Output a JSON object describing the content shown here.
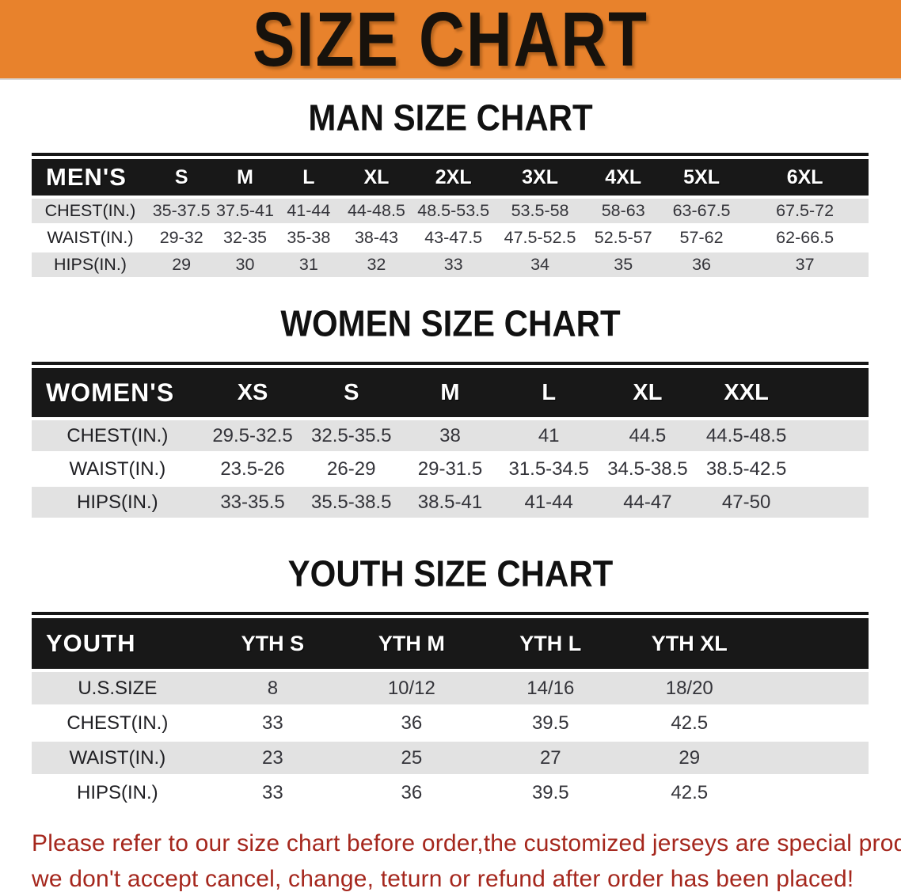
{
  "banner": {
    "title": "SIZE CHART",
    "bg_color": "#e8822c"
  },
  "sections": [
    {
      "heading": "MAN SIZE CHART",
      "table": {
        "label": "MEN'S",
        "columns": [
          "S",
          "M",
          "L",
          "XL",
          "2XL",
          "3XL",
          "4XL",
          "5XL",
          "6XL"
        ],
        "rows": [
          {
            "label": "CHEST(IN.)",
            "values": [
              "35-37.5",
              "37.5-41",
              "41-44",
              "44-48.5",
              "48.5-53.5",
              "53.5-58",
              "58-63",
              "63-67.5",
              "67.5-72"
            ]
          },
          {
            "label": "WAIST(IN.)",
            "values": [
              "29-32",
              "32-35",
              "35-38",
              "38-43",
              "43-47.5",
              "47.5-52.5",
              "52.5-57",
              "57-62",
              "62-66.5"
            ]
          },
          {
            "label": "HIPS(IN.)",
            "values": [
              "29",
              "30",
              "31",
              "32",
              "33",
              "34",
              "35",
              "36",
              "37"
            ]
          }
        ]
      }
    },
    {
      "heading": "WOMEN SIZE CHART",
      "table": {
        "label": "WOMEN'S",
        "columns": [
          "XS",
          "S",
          "M",
          "L",
          "XL",
          "XXL"
        ],
        "rows": [
          {
            "label": "CHEST(IN.)",
            "values": [
              "29.5-32.5",
              "32.5-35.5",
              "38",
              "41",
              "44.5",
              "44.5-48.5"
            ]
          },
          {
            "label": "WAIST(IN.)",
            "values": [
              "23.5-26",
              "26-29",
              "29-31.5",
              "31.5-34.5",
              "34.5-38.5",
              "38.5-42.5"
            ]
          },
          {
            "label": "HIPS(IN.)",
            "values": [
              "33-35.5",
              "35.5-38.5",
              "38.5-41",
              "41-44",
              "44-47",
              "47-50"
            ]
          }
        ]
      }
    },
    {
      "heading": "YOUTH SIZE CHART",
      "table": {
        "label": "YOUTH",
        "columns": [
          "YTH S",
          "YTH M",
          "YTH L",
          "YTH XL"
        ],
        "rows": [
          {
            "label": "U.S.SIZE",
            "values": [
              "8",
              "10/12",
              "14/16",
              "18/20"
            ]
          },
          {
            "label": "CHEST(IN.)",
            "values": [
              "33",
              "36",
              "39.5",
              "42.5"
            ]
          },
          {
            "label": "WAIST(IN.)",
            "values": [
              "23",
              "25",
              "27",
              "29"
            ]
          },
          {
            "label": "HIPS(IN.)",
            "values": [
              "33",
              "36",
              "39.5",
              "42.5"
            ]
          }
        ]
      }
    }
  ],
  "disclaimer": {
    "line1": "Please refer to our size chart before order,the customized jerseys are special products,",
    "line2": "we don't accept cancel, change, teturn or refund after order has been placed!",
    "color": "#a5271d"
  }
}
